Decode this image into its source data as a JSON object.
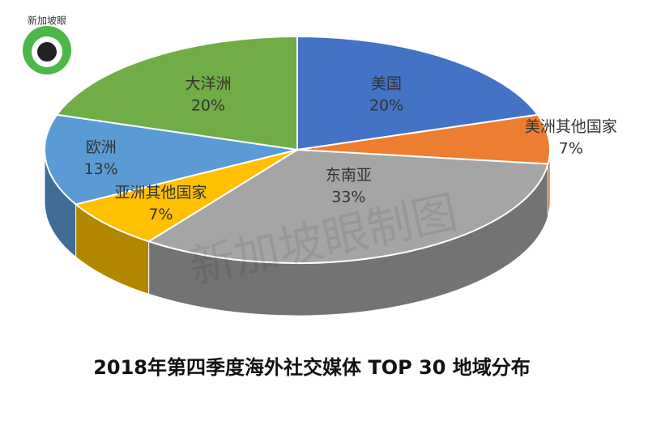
{
  "chart_data": {
    "type": "pie3d",
    "title": "2018年第四季度海外社交媒体 TOP 30 地域分布",
    "categories": [
      "美国",
      "美洲其他国家",
      "东南亚",
      "亚洲其他国家",
      "欧洲",
      "大洋洲"
    ],
    "values": [
      20,
      7,
      33,
      7,
      13,
      20
    ],
    "value_labels": [
      "20%",
      "7%",
      "33%",
      "7%",
      "13%",
      "20%"
    ],
    "colors": [
      "#4472c4",
      "#ed7d31",
      "#a5a5a5",
      "#ffc000",
      "#5b9bd5",
      "#70ad47"
    ]
  },
  "watermark": "新加坡眼制图",
  "logo": "新加坡眼"
}
